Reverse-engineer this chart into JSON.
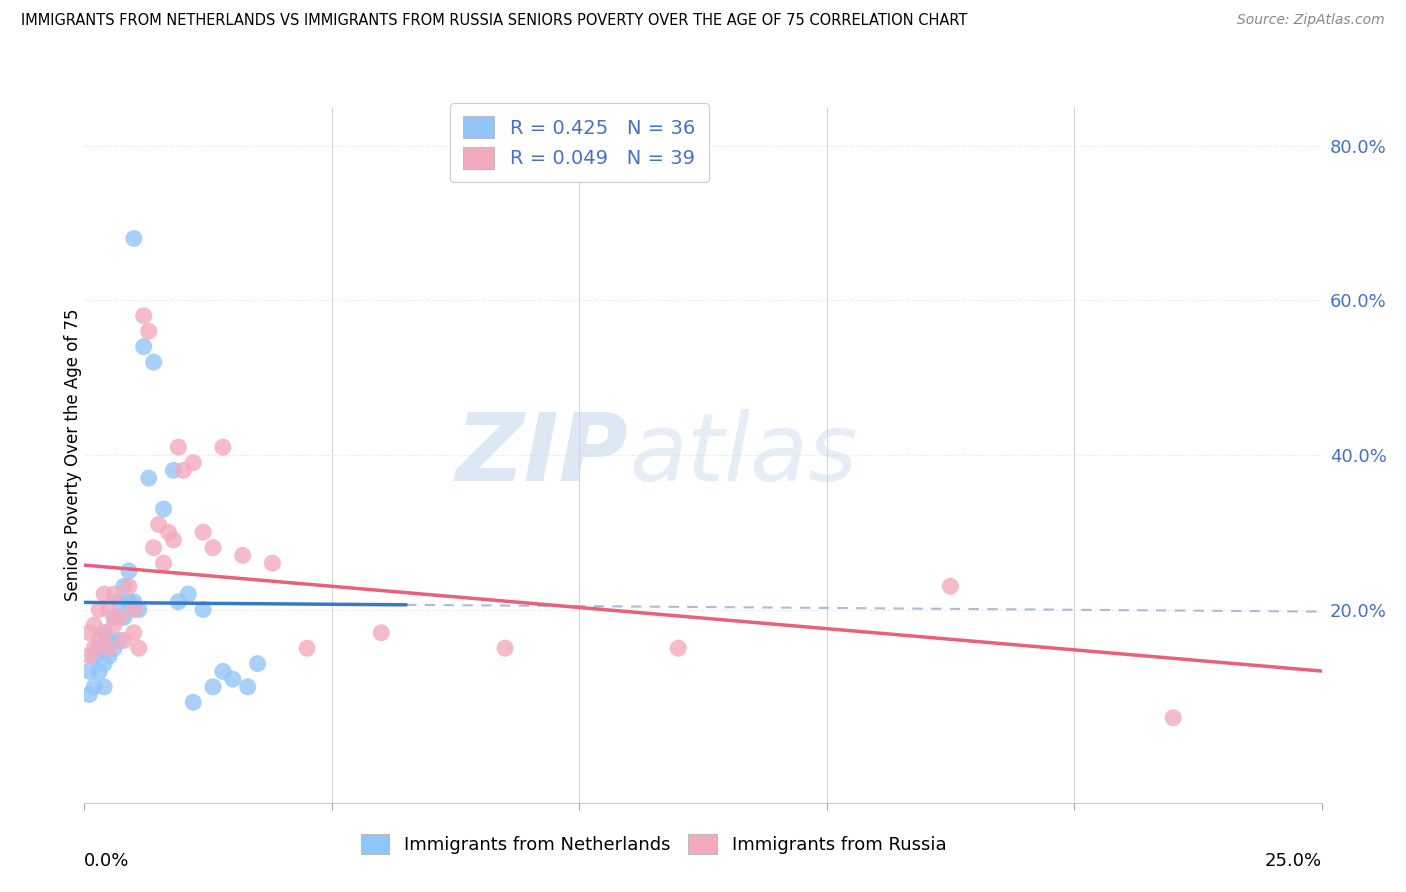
{
  "title": "IMMIGRANTS FROM NETHERLANDS VS IMMIGRANTS FROM RUSSIA SENIORS POVERTY OVER THE AGE OF 75 CORRELATION CHART",
  "source": "Source: ZipAtlas.com",
  "ylabel": "Seniors Poverty Over the Age of 75",
  "ytick_positions": [
    0.0,
    0.2,
    0.4,
    0.6,
    0.8
  ],
  "ytick_labels": [
    "",
    "20.0%",
    "40.0%",
    "60.0%",
    "80.0%"
  ],
  "xtick_positions": [
    0.0,
    0.05,
    0.1,
    0.15,
    0.2,
    0.25
  ],
  "xlim": [
    0.0,
    0.25
  ],
  "ylim": [
    -0.05,
    0.85
  ],
  "legend1_R": "0.425",
  "legend1_N": "36",
  "legend2_R": "0.049",
  "legend2_N": "39",
  "legend_label1": "Immigrants from Netherlands",
  "legend_label2": "Immigrants from Russia",
  "color_netherlands": "#92C5F7",
  "color_russia": "#F4AABE",
  "color_netherlands_line": "#3878C8",
  "color_russia_line": "#E8607A",
  "color_dashed": "#A8BED8",
  "watermark_zip": "ZIP",
  "watermark_atlas": "atlas",
  "nl_x": [
    0.001,
    0.001,
    0.002,
    0.002,
    0.003,
    0.003,
    0.004,
    0.004,
    0.004,
    0.005,
    0.005,
    0.006,
    0.006,
    0.007,
    0.007,
    0.008,
    0.008,
    0.009,
    0.009,
    0.01,
    0.01,
    0.011,
    0.012,
    0.013,
    0.014,
    0.016,
    0.018,
    0.019,
    0.021,
    0.022,
    0.024,
    0.026,
    0.028,
    0.03,
    0.033,
    0.035
  ],
  "nl_y": [
    0.09,
    0.12,
    0.1,
    0.14,
    0.12,
    0.15,
    0.1,
    0.13,
    0.17,
    0.14,
    0.16,
    0.15,
    0.19,
    0.16,
    0.21,
    0.19,
    0.23,
    0.21,
    0.25,
    0.21,
    0.68,
    0.2,
    0.54,
    0.37,
    0.52,
    0.33,
    0.38,
    0.21,
    0.22,
    0.08,
    0.2,
    0.1,
    0.12,
    0.11,
    0.1,
    0.13
  ],
  "ru_x": [
    0.001,
    0.001,
    0.002,
    0.002,
    0.003,
    0.003,
    0.004,
    0.004,
    0.005,
    0.005,
    0.006,
    0.006,
    0.007,
    0.008,
    0.009,
    0.01,
    0.01,
    0.011,
    0.012,
    0.013,
    0.014,
    0.015,
    0.016,
    0.017,
    0.018,
    0.019,
    0.02,
    0.022,
    0.024,
    0.026,
    0.028,
    0.032,
    0.038,
    0.045,
    0.06,
    0.085,
    0.12,
    0.175,
    0.22
  ],
  "ru_y": [
    0.14,
    0.17,
    0.15,
    0.18,
    0.16,
    0.2,
    0.17,
    0.22,
    0.15,
    0.2,
    0.18,
    0.22,
    0.19,
    0.16,
    0.23,
    0.2,
    0.17,
    0.15,
    0.58,
    0.56,
    0.28,
    0.31,
    0.26,
    0.3,
    0.29,
    0.41,
    0.38,
    0.39,
    0.3,
    0.28,
    0.41,
    0.27,
    0.26,
    0.15,
    0.17,
    0.15,
    0.15,
    0.23,
    0.06
  ],
  "nl_line_x_solid_end": 0.065,
  "grid_color": "#E0E0E0",
  "grid_style": "dotted"
}
